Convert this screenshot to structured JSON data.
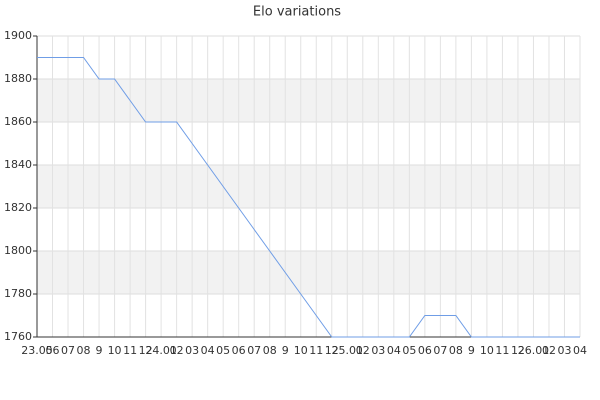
{
  "chart_data": {
    "type": "line",
    "title": "Elo variations",
    "categories": [
      "23.05",
      "06",
      "07",
      "08",
      "9",
      "10",
      "11",
      "12",
      "24.01",
      "02",
      "03",
      "04",
      "05",
      "06",
      "07",
      "08",
      "9",
      "10",
      "11",
      "12",
      "25.01",
      "02",
      "03",
      "04",
      "05",
      "06",
      "07",
      "08",
      "9",
      "10",
      "11",
      "12",
      "26.01",
      "02",
      "03",
      "04"
    ],
    "values": [
      1890,
      1890,
      1890,
      1890,
      1880,
      1880,
      1870,
      1860,
      1860,
      1860,
      1850,
      1840,
      1830,
      1820,
      1810,
      1800,
      1790,
      1780,
      1770,
      1760,
      1760,
      1760,
      1760,
      1760,
      1760,
      1770,
      1770,
      1770,
      1760,
      1760,
      1760,
      1760,
      1760,
      1760,
      1760,
      1760
    ],
    "color": "#6f9de6",
    "ylim": [
      1760,
      1900
    ],
    "yticks": [
      1760,
      1780,
      1800,
      1820,
      1840,
      1860,
      1880,
      1900
    ],
    "grid": true
  }
}
